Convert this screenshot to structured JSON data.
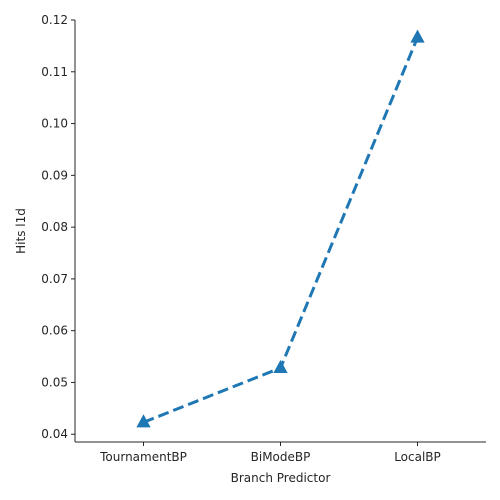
{
  "chart_data": {
    "type": "line",
    "title": "",
    "xlabel": "Branch Predictor",
    "ylabel": "Hits l1d",
    "categories": [
      "TournamentBP",
      "BiModeBP",
      "LocalBP"
    ],
    "series": [
      {
        "name": "Hits l1d",
        "values": [
          0.0423,
          0.0528,
          0.1166
        ],
        "color": "#1f77b4",
        "line_style": "dashed",
        "marker": "triangle-up"
      }
    ],
    "ylim": [
      0.0385,
      0.12
    ],
    "yticks": [
      0.04,
      0.05,
      0.06,
      0.07,
      0.08,
      0.09,
      0.1,
      0.11,
      0.12
    ],
    "ytick_labels": [
      "0.04",
      "0.05",
      "0.06",
      "0.07",
      "0.08",
      "0.09",
      "0.10",
      "0.11",
      "0.12"
    ],
    "grid": false,
    "legend": "none"
  }
}
